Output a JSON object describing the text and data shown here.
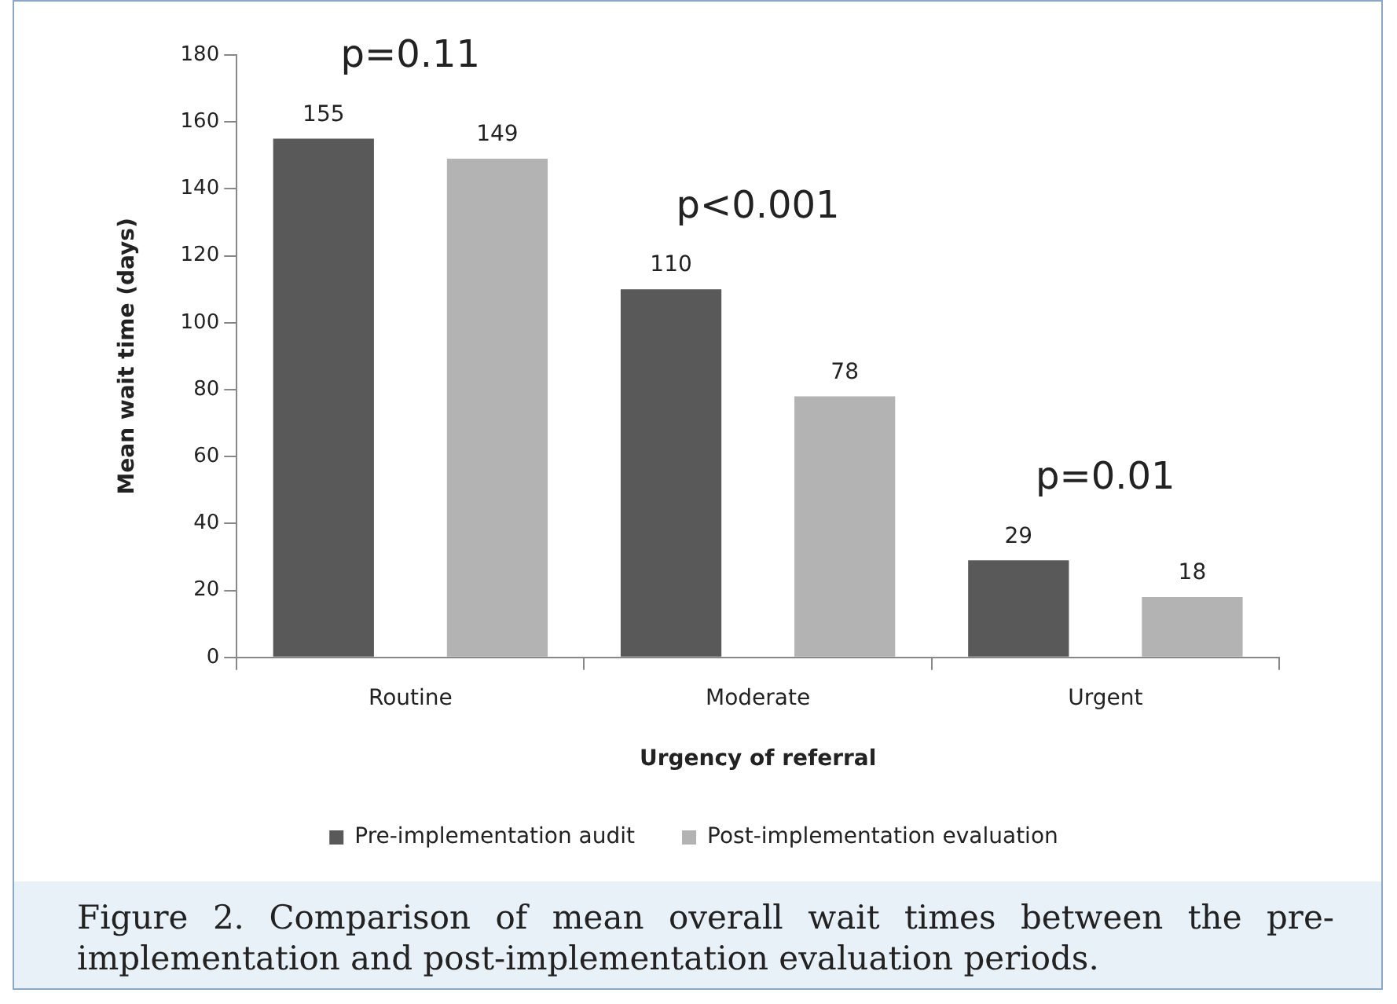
{
  "chart_data": {
    "type": "bar",
    "xlabel": "Urgency of referral",
    "ylabel": "Mean wait time (days)",
    "categories": [
      "Routine",
      "Moderate",
      "Urgent"
    ],
    "series": [
      {
        "name": "Pre-implementation audit",
        "color": "#595959",
        "values": [
          155,
          110,
          29
        ]
      },
      {
        "name": "Post-implementation evaluation",
        "color": "#b3b3b3",
        "values": [
          149,
          78,
          18
        ]
      }
    ],
    "ylim": [
      0,
      180
    ],
    "yticks": [
      0,
      20,
      40,
      60,
      80,
      100,
      120,
      140,
      160,
      180
    ],
    "grid": false,
    "legend": "bottom",
    "data_labels": true,
    "annotations": [
      "p=0.11",
      "p<0.001",
      "p=0.01",
      "Figure 2. Comparison of mean overall wait times between the pre-implementation and post-implementation evaluation periods."
    ]
  }
}
